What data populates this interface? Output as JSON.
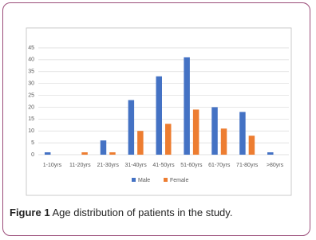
{
  "chart_data": {
    "type": "bar",
    "categories": [
      "1-10yrs",
      "11-20yrs",
      "21-30yrs",
      "31-40yrs",
      "41-50yrs",
      "51-60yrs",
      "61-70yrs",
      "71-80yrs",
      ">80yrs"
    ],
    "series": [
      {
        "name": "Male",
        "color": "#4472c4",
        "values": [
          1,
          0,
          6,
          23,
          33,
          41,
          20,
          18,
          1
        ]
      },
      {
        "name": "Female",
        "color": "#ed7d31",
        "values": [
          0,
          1,
          1,
          10,
          13,
          19,
          11,
          8,
          0
        ]
      }
    ],
    "ylim": [
      0,
      45
    ],
    "yticks": [
      0,
      5,
      10,
      15,
      20,
      25,
      30,
      35,
      40,
      45
    ],
    "grid": true,
    "legend": "bottom"
  },
  "caption": {
    "label": "Figure 1",
    "text": "Age distribution of patients in the study."
  }
}
